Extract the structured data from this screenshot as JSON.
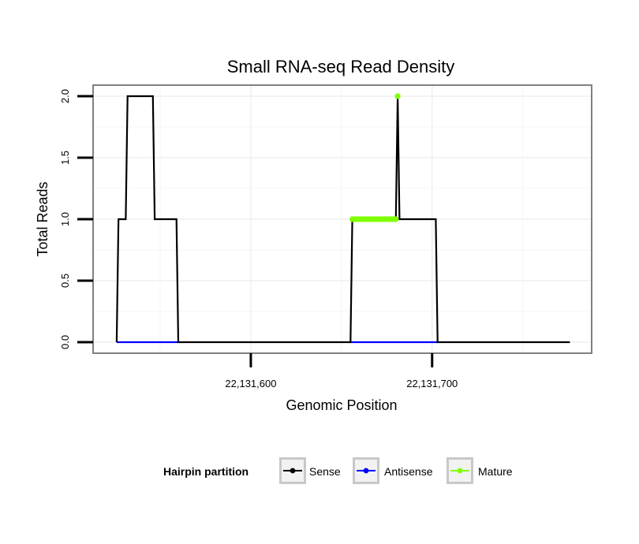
{
  "chart_data": {
    "type": "line",
    "title": "Small RNA-seq Read Density",
    "xlabel": "Genomic Position",
    "ylabel": "Total Reads",
    "xlim": [
      22131513,
      22131788
    ],
    "ylim": [
      -0.09,
      2.09
    ],
    "x_ticks": [
      {
        "value": 22131600,
        "label": "22,131,600"
      },
      {
        "value": 22131700,
        "label": "22,131,700"
      }
    ],
    "y_ticks": [
      {
        "value": 0,
        "label": "0.0"
      },
      {
        "value": 0.5,
        "label": "0.5"
      },
      {
        "value": 1,
        "label": "1.0"
      },
      {
        "value": 1.5,
        "label": "1.5"
      },
      {
        "value": 2,
        "label": "2.0"
      }
    ],
    "grid": true,
    "legend_position": "bottom",
    "legend_title": "Hairpin partition",
    "series": [
      {
        "name": "Sense",
        "color": "#000000",
        "style": "line",
        "x": [
          22131526,
          22131527,
          22131531,
          22131532,
          22131546,
          22131547,
          22131559,
          22131560,
          22131655,
          22131656,
          22131680,
          22131681,
          22131682,
          22131702,
          22131703,
          22131776
        ],
        "y": [
          0,
          1,
          1,
          2,
          2,
          1,
          1,
          0,
          0,
          1,
          1,
          2,
          1,
          1,
          0,
          0
        ]
      },
      {
        "name": "Antisense",
        "color": "#0000ff",
        "style": "line",
        "x": [
          22131526,
          22131560,
          22131655,
          22131703
        ],
        "y": [
          0,
          0,
          0,
          0
        ]
      },
      {
        "name": "Mature",
        "color": "#7fff00",
        "style": "points",
        "x": [
          22131656,
          22131657,
          22131658,
          22131659,
          22131660,
          22131661,
          22131662,
          22131663,
          22131664,
          22131665,
          22131666,
          22131667,
          22131668,
          22131669,
          22131670,
          22131671,
          22131672,
          22131673,
          22131674,
          22131675,
          22131676,
          22131677,
          22131678,
          22131679,
          22131680,
          22131681
        ],
        "y": [
          1,
          1,
          1,
          1,
          1,
          1,
          1,
          1,
          1,
          1,
          1,
          1,
          1,
          1,
          1,
          1,
          1,
          1,
          1,
          1,
          1,
          1,
          1,
          1,
          1,
          2
        ]
      }
    ]
  }
}
